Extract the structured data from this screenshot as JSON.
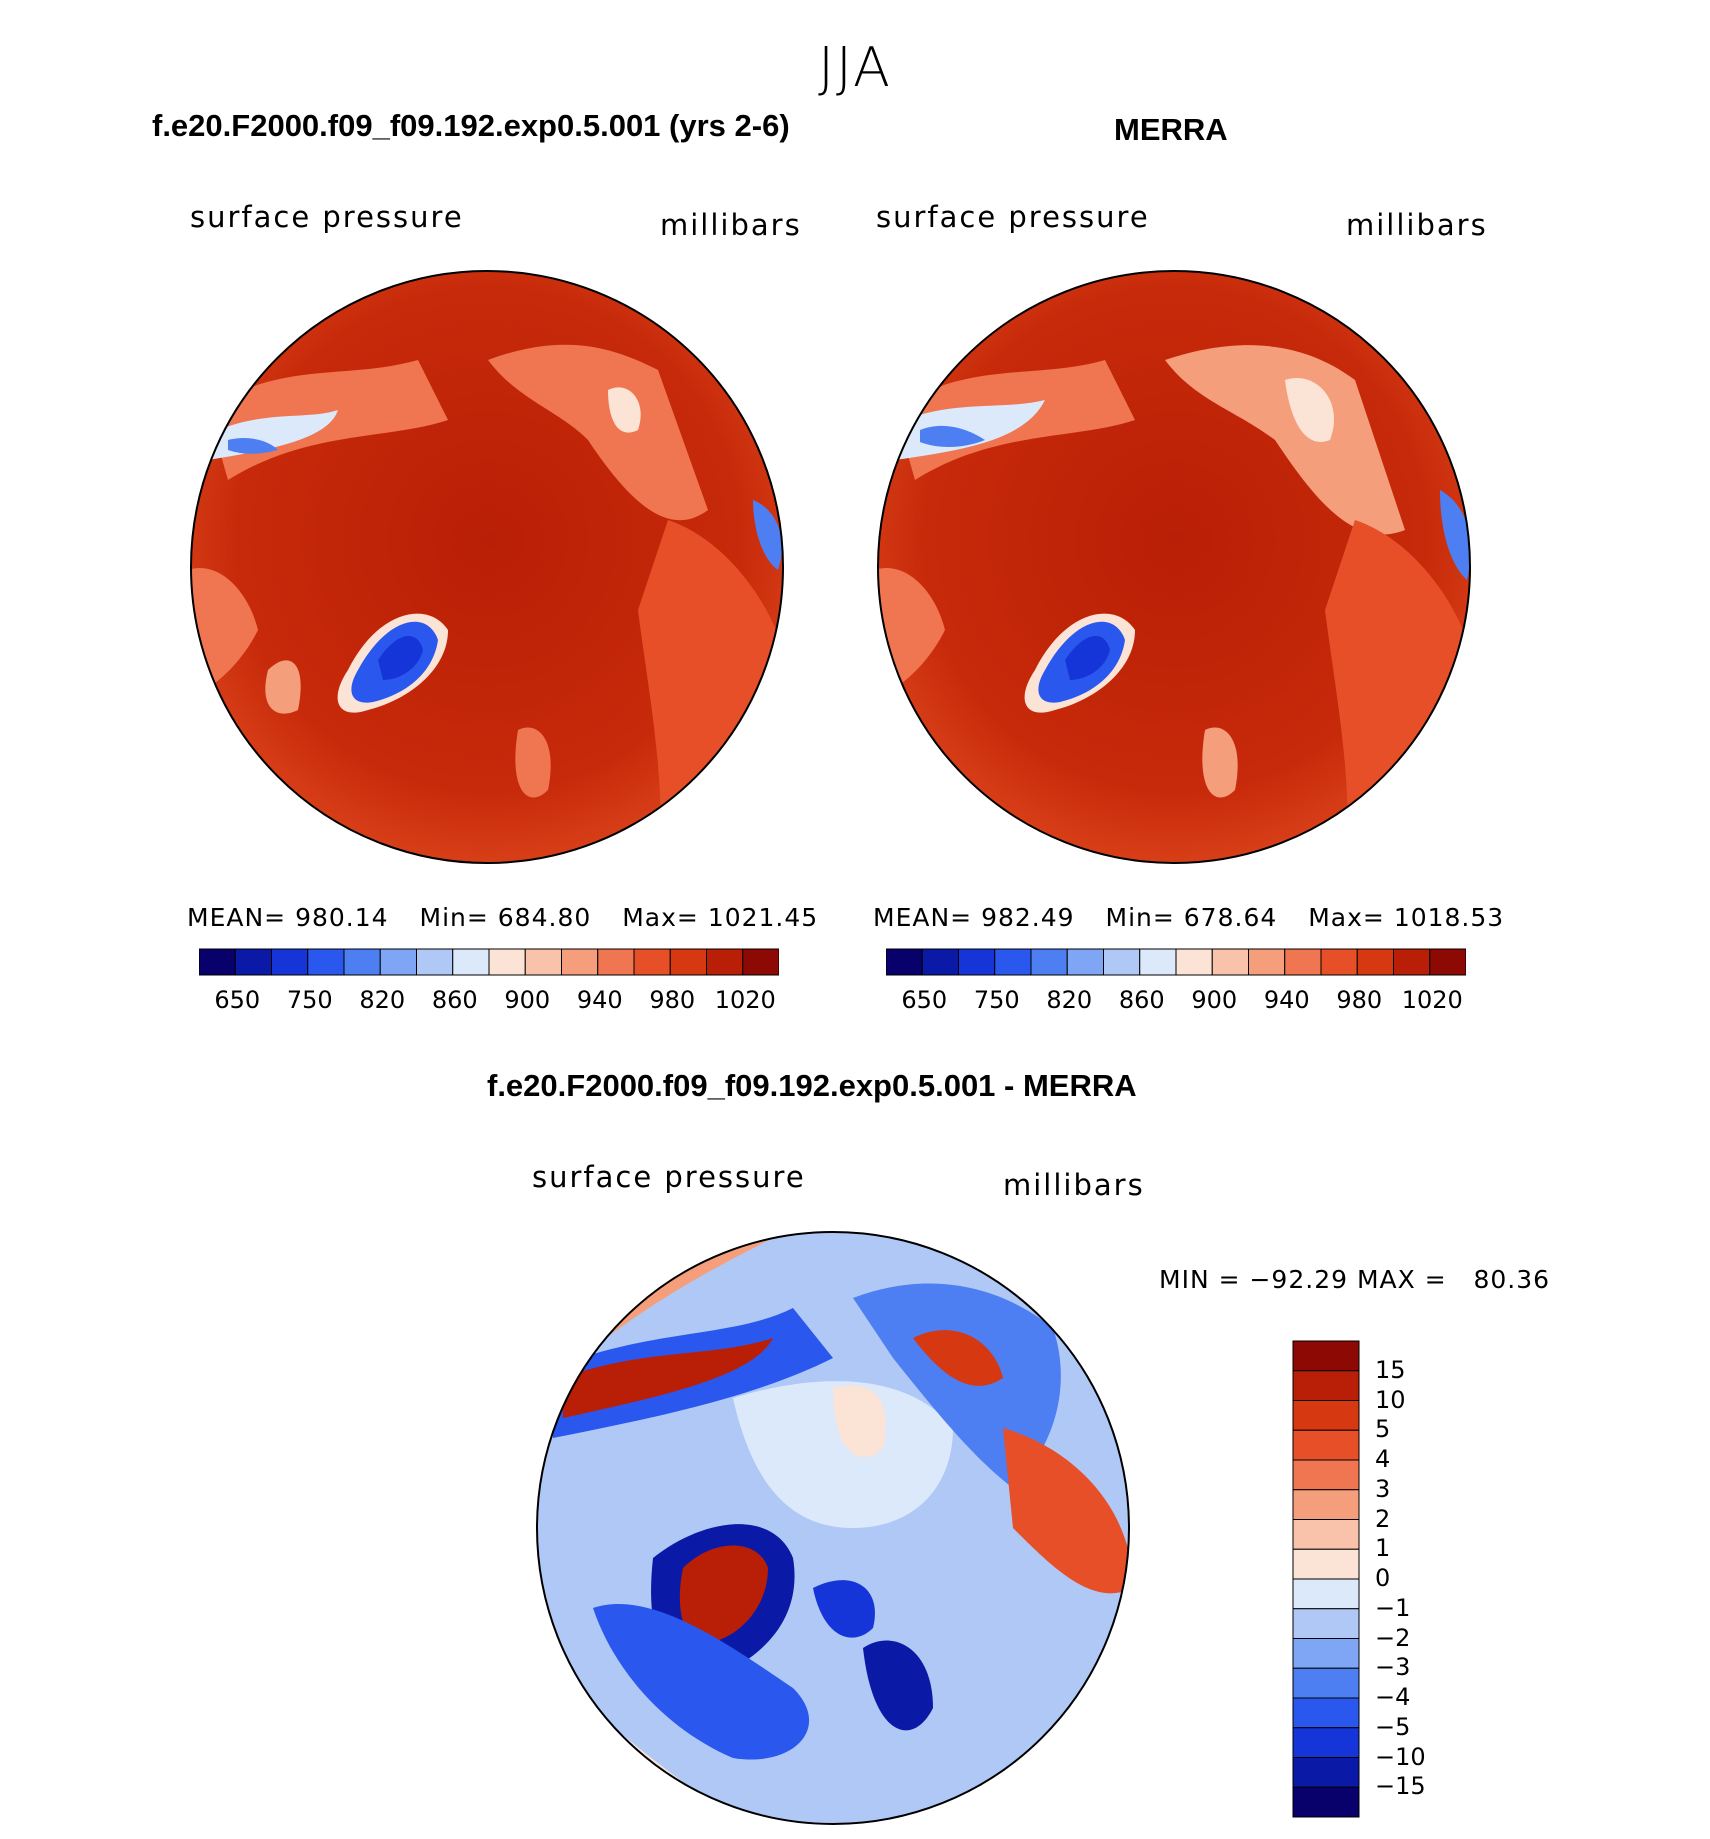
{
  "figure": {
    "season": "JJA"
  },
  "colors": {
    "map_outline": "#000000",
    "abs_levels": [
      "#08016b",
      "#0a1aa6",
      "#1535d8",
      "#2a58ee",
      "#4d7ff2",
      "#7ea6f4",
      "#afc8f6",
      "#dbe9fb",
      "#fbe3d6",
      "#f8c3aa",
      "#f59e7c",
      "#ef7650",
      "#e64f27",
      "#d63811",
      "#b91f06",
      "#8c0a03"
    ],
    "diff_levels": [
      "#08016b",
      "#0a1aa6",
      "#1535d8",
      "#2a58ee",
      "#4d7ff2",
      "#7ea6f4",
      "#afc8f6",
      "#dbe9fb",
      "#fbe3d6",
      "#f8c3aa",
      "#f59e7c",
      "#ef7650",
      "#e64f27",
      "#d63811",
      "#b91f06",
      "#8c0a03"
    ]
  },
  "chart_data": [
    {
      "type": "heatmap",
      "title": "f.e20.F2000.f09_f09.192.exp0.5.001 (yrs 2-6)",
      "left_label": "surface pressure",
      "right_label": "millibars",
      "stats": {
        "mean_label": "MEAN=",
        "mean": "980.14",
        "min_label": "Min=",
        "min": "684.80",
        "max_label": "Max=",
        "max": "1021.45"
      },
      "colorbar_ticks": [
        "650",
        "750",
        "820",
        "860",
        "900",
        "940",
        "980",
        "1020"
      ],
      "projection": "polar stereographic (north pole)"
    },
    {
      "type": "heatmap",
      "title": "MERRA",
      "left_label": "surface pressure",
      "right_label": "millibars",
      "stats": {
        "mean_label": "MEAN=",
        "mean": "982.49",
        "min_label": "Min=",
        "min": "678.64",
        "max_label": "Max=",
        "max": "1018.53"
      },
      "colorbar_ticks": [
        "650",
        "750",
        "820",
        "860",
        "900",
        "940",
        "980",
        "1020"
      ],
      "projection": "polar stereographic (north pole)"
    },
    {
      "type": "heatmap",
      "title": "f.e20.F2000.f09_f09.192.exp0.5.001 - MERRA",
      "left_label": "surface pressure",
      "right_label": "millibars",
      "range_text": "MIN = −92.29 MAX =   80.36",
      "colorbar_ticks": [
        "15",
        "10",
        "5",
        "4",
        "3",
        "2",
        "1",
        "0",
        "−1",
        "−2",
        "−3",
        "−4",
        "−5",
        "−10",
        "−15"
      ],
      "projection": "polar stereographic (north pole)"
    }
  ]
}
